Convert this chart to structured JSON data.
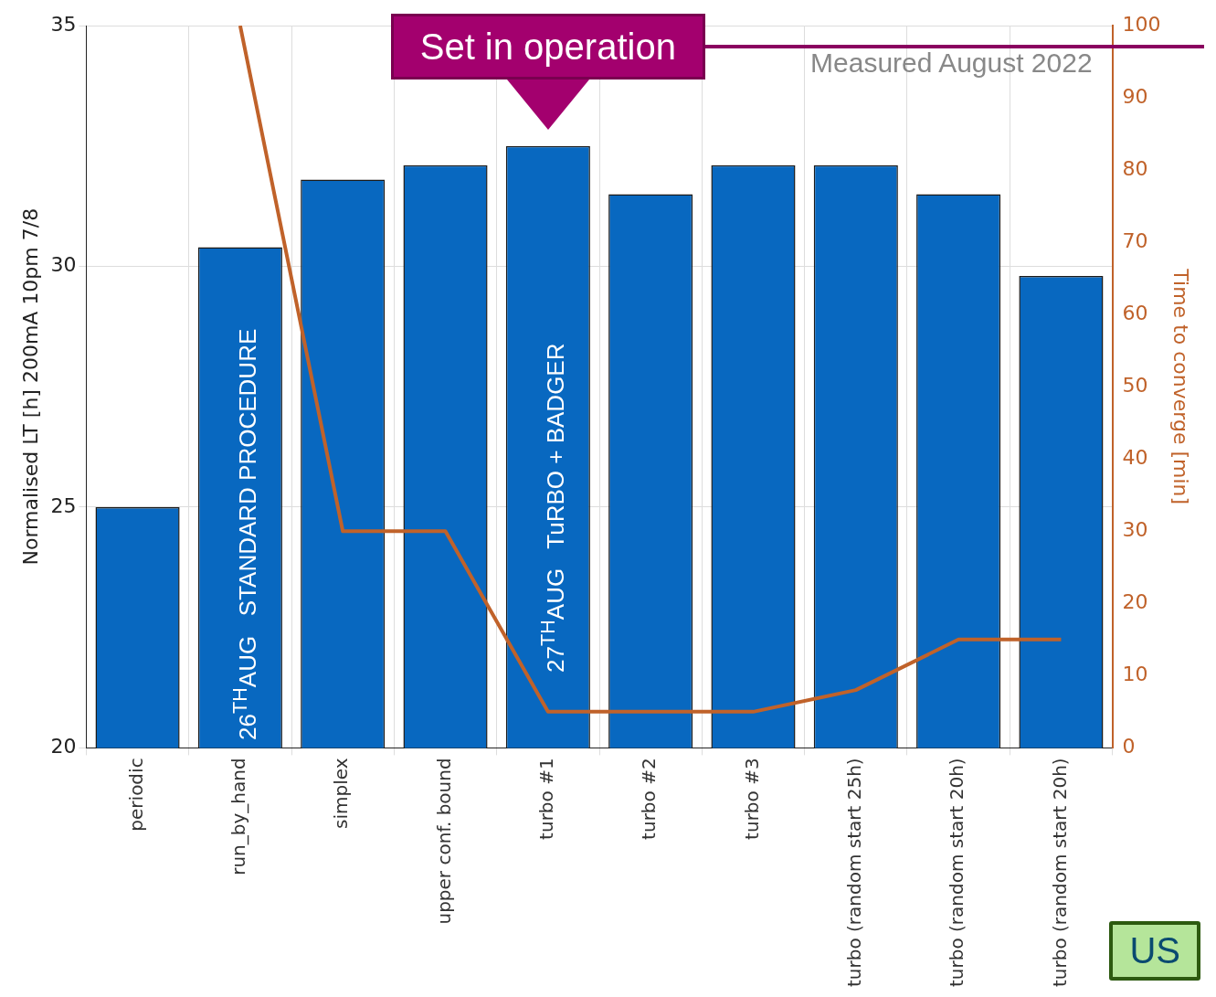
{
  "chart_data": {
    "type": "bar",
    "ylabel": "Normalised LT [h] 200mA 10pm 7/8",
    "y2label": "Time to converge [min]",
    "categories": [
      "periodic",
      "run_by_hand",
      "simplex",
      "upper conf. bound",
      "turbo #1",
      "turbo #2",
      "turbo #3",
      "turbo (random start 25h)",
      "turbo (random start 20h)",
      "turbo (random start 20h)"
    ],
    "series": [
      {
        "color": "#0868c0",
        "values": [
          25.0,
          30.4,
          31.8,
          32.1,
          32.5,
          31.5,
          32.1,
          32.1,
          31.5,
          29.8
        ]
      },
      {
        "type": "line",
        "axis": "y2",
        "color": "#c0622a",
        "values": [
          null,
          100,
          30,
          30,
          5,
          5,
          5,
          8,
          15,
          15
        ]
      }
    ],
    "ylim": [
      20,
      35
    ],
    "yticks": [
      20,
      25,
      30,
      35
    ],
    "y2lim": [
      0,
      100
    ],
    "y2ticks": [
      0,
      10,
      20,
      30,
      40,
      50,
      60,
      70,
      80,
      90,
      100
    ],
    "grid": true,
    "legend": false,
    "marker": "none",
    "annotations": [
      {
        "text": "Set in operation",
        "x": "turbo #1",
        "y": 32.5
      },
      "26$^{TH}$AUG   STANDARD PROCEDURE",
      "27$^{TH}$AUG   TuRBO + BADGER",
      "Measured August 2022",
      "US"
    ]
  }
}
